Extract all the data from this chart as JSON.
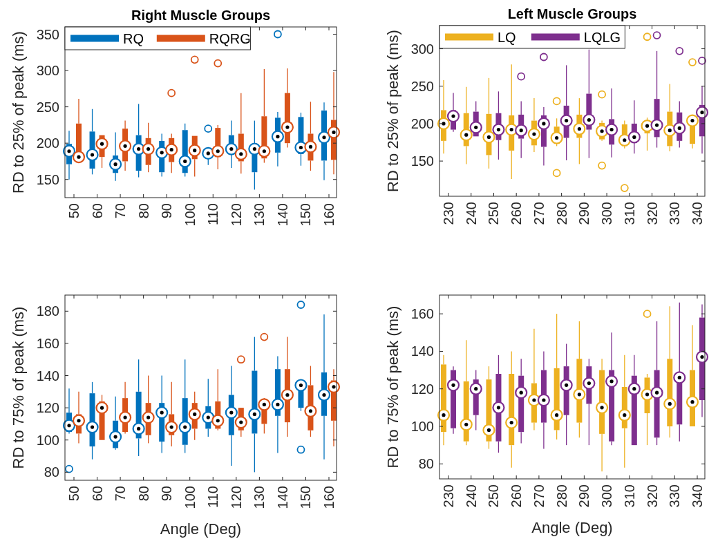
{
  "chart_data": [
    {
      "type": "box",
      "title": "Right Muscle Groups",
      "ylabel": "RD to 25% of peak (ms)",
      "categories": [
        "50",
        "60",
        "70",
        "80",
        "90",
        "100",
        "110",
        "120",
        "130",
        "140",
        "150",
        "160"
      ],
      "ylim": [
        125,
        360
      ],
      "yticks": [
        150,
        200,
        250,
        300,
        350
      ],
      "legend": "top left",
      "series": [
        {
          "name": "RQ",
          "color": "#0072bd",
          "boxes": [
            {
              "low": 150,
              "q1": 171,
              "median": 189,
              "q3": 199,
              "high": 217
            },
            {
              "low": 157,
              "q1": 165,
              "median": 184,
              "q3": 216,
              "high": 247
            },
            {
              "low": 148,
              "q1": 159,
              "median": 171,
              "q3": 183,
              "high": 215
            },
            {
              "low": 153,
              "q1": 162,
              "median": 192,
              "q3": 211,
              "high": 254
            },
            {
              "low": 154,
              "q1": 160,
              "median": 187,
              "q3": 203,
              "high": 213
            },
            {
              "low": 154,
              "q1": 159,
              "median": 175,
              "q3": 218,
              "high": 227
            },
            {
              "low": 170,
              "q1": 181,
              "median": 186,
              "q3": 188,
              "high": 190,
              "outliers": [
                220
              ]
            },
            {
              "low": 166,
              "q1": 184,
              "median": 192,
              "q3": 211,
              "high": 231
            },
            {
              "low": 136,
              "q1": 160,
              "median": 192,
              "q3": 195,
              "high": 231
            },
            {
              "low": 168,
              "q1": 187,
              "median": 209,
              "q3": 235,
              "high": 243,
              "outliers": [
                350
              ]
            },
            {
              "low": 169,
              "q1": 185,
              "median": 194,
              "q3": 236,
              "high": 242
            },
            {
              "low": 149,
              "q1": 176,
              "median": 208,
              "q3": 245,
              "high": 256
            }
          ]
        },
        {
          "name": "RQRG",
          "color": "#d95319",
          "boxes": [
            {
              "low": 178,
              "q1": 178,
              "median": 181,
              "q3": 227,
              "high": 261
            },
            {
              "low": 166,
              "q1": 181,
              "median": 199,
              "q3": 211,
              "high": 211
            },
            {
              "low": 162,
              "q1": 175,
              "median": 196,
              "q3": 220,
              "high": 231
            },
            {
              "low": 160,
              "q1": 170,
              "median": 192,
              "q3": 207,
              "high": 228
            },
            {
              "low": 159,
              "q1": 174,
              "median": 191,
              "q3": 207,
              "high": 213,
              "outliers": [
                269
              ]
            },
            {
              "low": 154,
              "q1": 178,
              "median": 190,
              "q3": 210,
              "high": 210,
              "outliers": [
                315
              ]
            },
            {
              "low": 164,
              "q1": 181,
              "median": 189,
              "q3": 221,
              "high": 225,
              "outliers": [
                310
              ]
            },
            {
              "low": 158,
              "q1": 175,
              "median": 185,
              "q3": 213,
              "high": 269
            },
            {
              "low": 173,
              "q1": 179,
              "median": 189,
              "q3": 237,
              "high": 302
            },
            {
              "low": 194,
              "q1": 200,
              "median": 222,
              "q3": 269,
              "high": 303
            },
            {
              "low": 162,
              "q1": 176,
              "median": 195,
              "q3": 213,
              "high": 257
            },
            {
              "low": 157,
              "q1": 177,
              "median": 215,
              "q3": 232,
              "high": 298
            }
          ]
        }
      ]
    },
    {
      "type": "box",
      "title": "Left Muscle Groups",
      "ylabel": "RD to 25% of peak (ms)",
      "categories": [
        "230",
        "240",
        "250",
        "260",
        "270",
        "280",
        "290",
        "300",
        "310",
        "320",
        "330",
        "340"
      ],
      "ylim": [
        103,
        331
      ],
      "yticks": [
        150,
        200,
        250,
        300
      ],
      "legend": "top left",
      "series": [
        {
          "name": "LQ",
          "color": "#edb120",
          "boxes": [
            {
              "low": 160,
              "q1": 177,
              "median": 200,
              "q3": 218,
              "high": 258
            },
            {
              "low": 146,
              "q1": 170,
              "median": 185,
              "q3": 214,
              "high": 249
            },
            {
              "low": 140,
              "q1": 158,
              "median": 182,
              "q3": 213,
              "high": 261
            },
            {
              "low": 126,
              "q1": 164,
              "median": 192,
              "q3": 211,
              "high": 279
            },
            {
              "low": 162,
              "q1": 171,
              "median": 186,
              "q3": 204,
              "high": 234
            },
            {
              "low": 170,
              "q1": 173,
              "median": 181,
              "q3": 196,
              "high": 207,
              "outliers": [
                230,
                134
              ]
            },
            {
              "low": 146,
              "q1": 181,
              "median": 193,
              "q3": 212,
              "high": 234
            },
            {
              "low": 177,
              "q1": 179,
              "median": 190,
              "q3": 201,
              "high": 204,
              "outliers": [
                239,
                144
              ]
            },
            {
              "low": 167,
              "q1": 170,
              "median": 178,
              "q3": 199,
              "high": 204,
              "outliers": [
                114
              ]
            },
            {
              "low": 164,
              "q1": 187,
              "median": 197,
              "q3": 200,
              "high": 208,
              "outliers": [
                316
              ]
            },
            {
              "low": 163,
              "q1": 170,
              "median": 191,
              "q3": 216,
              "high": 253
            },
            {
              "low": 167,
              "q1": 173,
              "median": 204,
              "q3": 206,
              "high": 207,
              "outliers": [
                282
              ]
            }
          ]
        },
        {
          "name": "LQLG",
          "color": "#7e2f8e",
          "boxes": [
            {
              "low": 189,
              "q1": 192,
              "median": 210,
              "q3": 218,
              "high": 241
            },
            {
              "low": 183,
              "q1": 183,
              "median": 195,
              "q3": 216,
              "high": 230
            },
            {
              "low": 152,
              "q1": 178,
              "median": 192,
              "q3": 214,
              "high": 243
            },
            {
              "low": 154,
              "q1": 180,
              "median": 191,
              "q3": 212,
              "high": 230,
              "outliers": [
                263
              ]
            },
            {
              "low": 144,
              "q1": 169,
              "median": 200,
              "q3": 211,
              "high": 222,
              "outliers": [
                289
              ]
            },
            {
              "low": 151,
              "q1": 181,
              "median": 204,
              "q3": 224,
              "high": 278
            },
            {
              "low": 154,
              "q1": 192,
              "median": 205,
              "q3": 240,
              "high": 299
            },
            {
              "low": 155,
              "q1": 172,
              "median": 192,
              "q3": 206,
              "high": 247
            },
            {
              "low": 160,
              "q1": 174,
              "median": 182,
              "q3": 200,
              "high": 231
            },
            {
              "low": 168,
              "q1": 182,
              "median": 198,
              "q3": 233,
              "high": 297,
              "outliers": [
                318
              ]
            },
            {
              "low": 168,
              "q1": 177,
              "median": 194,
              "q3": 215,
              "high": 230,
              "outliers": [
                297
              ]
            },
            {
              "low": 160,
              "q1": 183,
              "median": 215,
              "q3": 225,
              "high": 250,
              "outliers": [
                284
              ]
            }
          ]
        }
      ]
    },
    {
      "type": "box",
      "xlabel": "Angle (Deg)",
      "ylabel": "RD to 75% of peak (ms)",
      "categories": [
        "50",
        "60",
        "70",
        "80",
        "90",
        "100",
        "110",
        "120",
        "130",
        "140",
        "150",
        "160"
      ],
      "ylim": [
        75,
        190
      ],
      "yticks": [
        80,
        100,
        120,
        140,
        160,
        180
      ],
      "series": [
        {
          "color": "#0072bd",
          "boxes": [
            {
              "low": 104,
              "q1": 105,
              "median": 109,
              "q3": 117,
              "high": 132,
              "outliers": [
                82
              ]
            },
            {
              "low": 88,
              "q1": 96,
              "median": 108,
              "q3": 129,
              "high": 136
            },
            {
              "low": 94,
              "q1": 95,
              "median": 102,
              "q3": 112,
              "high": 127
            },
            {
              "low": 90,
              "q1": 101,
              "median": 107,
              "q3": 130,
              "high": 150
            },
            {
              "low": 92,
              "q1": 99,
              "median": 117,
              "q3": 123,
              "high": 140
            },
            {
              "low": 92,
              "q1": 97,
              "median": 108,
              "q3": 126,
              "high": 150
            },
            {
              "low": 102,
              "q1": 107,
              "median": 114,
              "q3": 121,
              "high": 138
            },
            {
              "low": 84,
              "q1": 103,
              "median": 117,
              "q3": 128,
              "high": 146
            },
            {
              "low": 80,
              "q1": 104,
              "median": 116,
              "q3": 143,
              "high": 164
            },
            {
              "low": 92,
              "q1": 115,
              "median": 122,
              "q3": 144,
              "high": 152
            },
            {
              "low": 118,
              "q1": 120,
              "median": 134,
              "q3": 135,
              "high": 136,
              "outliers": [
                184,
                94
              ]
            },
            {
              "low": 88,
              "q1": 115,
              "median": 128,
              "q3": 142,
              "high": 178
            }
          ]
        },
        {
          "color": "#d95319",
          "boxes": [
            {
              "low": 98,
              "q1": 104,
              "median": 112,
              "q3": 116,
              "high": 130
            },
            {
              "low": 100,
              "q1": 100,
              "median": 120,
              "q3": 124,
              "high": 128
            },
            {
              "low": 104,
              "q1": 105,
              "median": 114,
              "q3": 126,
              "high": 136
            },
            {
              "low": 98,
              "q1": 103,
              "median": 114,
              "q3": 123,
              "high": 140
            },
            {
              "low": 96,
              "q1": 103,
              "median": 108,
              "q3": 116,
              "high": 136
            },
            {
              "low": 100,
              "q1": 107,
              "median": 116,
              "q3": 123,
              "high": 130
            },
            {
              "low": 106,
              "q1": 107,
              "median": 112,
              "q3": 124,
              "high": 144
            },
            {
              "low": 102,
              "q1": 106,
              "median": 111,
              "q3": 120,
              "high": 120,
              "outliers": [
                150
              ]
            },
            {
              "low": 104,
              "q1": 110,
              "median": 122,
              "q3": 125,
              "high": 126,
              "outliers": [
                164
              ]
            },
            {
              "low": 102,
              "q1": 111,
              "median": 128,
              "q3": 144,
              "high": 164
            },
            {
              "low": 102,
              "q1": 106,
              "median": 118,
              "q3": 134,
              "high": 146
            },
            {
              "low": 96,
              "q1": 112,
              "median": 133,
              "q3": 137,
              "high": 144
            }
          ]
        }
      ]
    },
    {
      "type": "box",
      "xlabel": "Angle (Deg)",
      "ylabel": "RD to 75% of peak (ms)",
      "categories": [
        "230",
        "240",
        "250",
        "260",
        "270",
        "280",
        "290",
        "300",
        "310",
        "320",
        "330",
        "340"
      ],
      "ylim": [
        72,
        170
      ],
      "yticks": [
        80,
        100,
        120,
        140,
        160
      ],
      "series": [
        {
          "color": "#edb120",
          "boxes": [
            {
              "low": 90,
              "q1": 97,
              "median": 106,
              "q3": 133,
              "high": 138
            },
            {
              "low": 90,
              "q1": 92,
              "median": 101,
              "q3": 124,
              "high": 146
            },
            {
              "low": 88,
              "q1": 92,
              "median": 98,
              "q3": 125,
              "high": 132
            },
            {
              "low": 78,
              "q1": 90,
              "median": 102,
              "q3": 128,
              "high": 140
            },
            {
              "low": 98,
              "q1": 102,
              "median": 114,
              "q3": 123,
              "high": 152
            },
            {
              "low": 93,
              "q1": 98,
              "median": 106,
              "q3": 131,
              "high": 160
            },
            {
              "low": 94,
              "q1": 102,
              "median": 117,
              "q3": 136,
              "high": 156
            },
            {
              "low": 76,
              "q1": 96,
              "median": 110,
              "q3": 130,
              "high": 136
            },
            {
              "low": 78,
              "q1": 99,
              "median": 106,
              "q3": 121,
              "high": 138
            },
            {
              "low": 90,
              "q1": 107,
              "median": 117,
              "q3": 126,
              "high": 128,
              "outliers": [
                160
              ]
            },
            {
              "low": 94,
              "q1": 100,
              "median": 112,
              "q3": 136,
              "high": 164
            },
            {
              "low": 100,
              "q1": 100,
              "median": 113,
              "q3": 130,
              "high": 154
            }
          ]
        },
        {
          "color": "#7e2f8e",
          "boxes": [
            {
              "low": 96,
              "q1": 99,
              "median": 122,
              "q3": 130,
              "high": 132
            },
            {
              "low": 98,
              "q1": 106,
              "median": 120,
              "q3": 125,
              "high": 130
            },
            {
              "low": 86,
              "q1": 92,
              "median": 110,
              "q3": 128,
              "high": 138
            },
            {
              "low": 91,
              "q1": 97,
              "median": 118,
              "q3": 127,
              "high": 136
            },
            {
              "low": 88,
              "q1": 102,
              "median": 114,
              "q3": 130,
              "high": 140
            },
            {
              "low": 90,
              "q1": 106,
              "median": 122,
              "q3": 132,
              "high": 144
            },
            {
              "low": 90,
              "q1": 112,
              "median": 123,
              "q3": 132,
              "high": 136
            },
            {
              "low": 90,
              "q1": 92,
              "median": 124,
              "q3": 130,
              "high": 150
            },
            {
              "low": 90,
              "q1": 90,
              "median": 120,
              "q3": 127,
              "high": 138
            },
            {
              "low": 90,
              "q1": 94,
              "median": 118,
              "q3": 130,
              "high": 156
            },
            {
              "low": 92,
              "q1": 101,
              "median": 126,
              "q3": 128,
              "high": 166
            },
            {
              "low": 105,
              "q1": 114,
              "median": 137,
              "q3": 158,
              "high": 165
            }
          ]
        }
      ]
    }
  ]
}
